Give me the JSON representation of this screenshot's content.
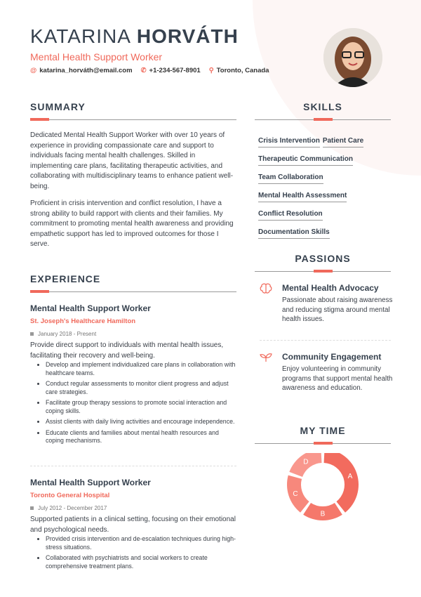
{
  "header": {
    "first_name": "KATARINA",
    "last_name": "HORVÁTH",
    "title": "Mental Health Support Worker",
    "email": "katarina_horváth@email.com",
    "phone": "+1-234-567-8901",
    "location": "Toronto, Canada"
  },
  "summary": {
    "heading": "SUMMARY",
    "paragraphs": [
      "Dedicated Mental Health Support Worker with over 10 years of experience in providing compassionate care and support to individuals facing mental health challenges. Skilled in implementing care plans, facilitating therapeutic activities, and collaborating with multidisciplinary teams to enhance patient well-being.",
      "Proficient in crisis intervention and conflict resolution, I have a strong ability to build rapport with clients and their families. My commitment to promoting mental health awareness and providing empathetic support has led to improved outcomes for those I serve."
    ]
  },
  "skills": {
    "heading": "SKILLS",
    "items": [
      "Crisis Intervention",
      "Patient Care",
      "Therapeutic Communication",
      "Team Collaboration",
      "Mental Health Assessment",
      "Conflict Resolution",
      "Documentation Skills"
    ]
  },
  "experience": {
    "heading": "EXPERIENCE",
    "jobs": [
      {
        "role": "Mental Health Support Worker",
        "company": "St. Joseph's Healthcare Hamilton",
        "dates": "January 2018 - Present",
        "description": "Provide direct support to individuals with mental health issues, facilitating their recovery and well-being.",
        "bullets": [
          "Develop and implement individualized care plans in collaboration with healthcare teams.",
          "Conduct regular assessments to monitor client progress and adjust care strategies.",
          "Facilitate group therapy sessions to promote social interaction and coping skills.",
          "Assist clients with daily living activities and encourage independence.",
          "Educate clients and families about mental health resources and coping mechanisms."
        ]
      },
      {
        "role": "Mental Health Support Worker",
        "company": "Toronto General Hospital",
        "dates": "July 2012 - December 2017",
        "description": "Supported patients in a clinical setting, focusing on their emotional and psychological needs.",
        "bullets": [
          "Provided crisis intervention and de-escalation techniques during high-stress situations.",
          "Collaborated with psychiatrists and social workers to create comprehensive treatment plans."
        ]
      }
    ]
  },
  "passions": {
    "heading": "PASSIONS",
    "items": [
      {
        "icon": "brain-icon",
        "title": "Mental Health Advocacy",
        "text": "Passionate about raising awareness and reducing stigma around mental health issues."
      },
      {
        "icon": "sprout-icon",
        "title": "Community Engagement",
        "text": "Enjoy volunteering in community programs that support mental health awareness and education."
      }
    ]
  },
  "my_time": {
    "heading": "MY TIME"
  },
  "chart_data": {
    "type": "pie",
    "donut": true,
    "categories": [
      "A",
      "B",
      "C",
      "D"
    ],
    "values": [
      40,
      20,
      20,
      20
    ],
    "colors": [
      "#f26b5e",
      "#f5786b",
      "#f7887c",
      "#f9978d"
    ]
  },
  "colors": {
    "accent": "#f0695b",
    "dark": "#36414e"
  }
}
